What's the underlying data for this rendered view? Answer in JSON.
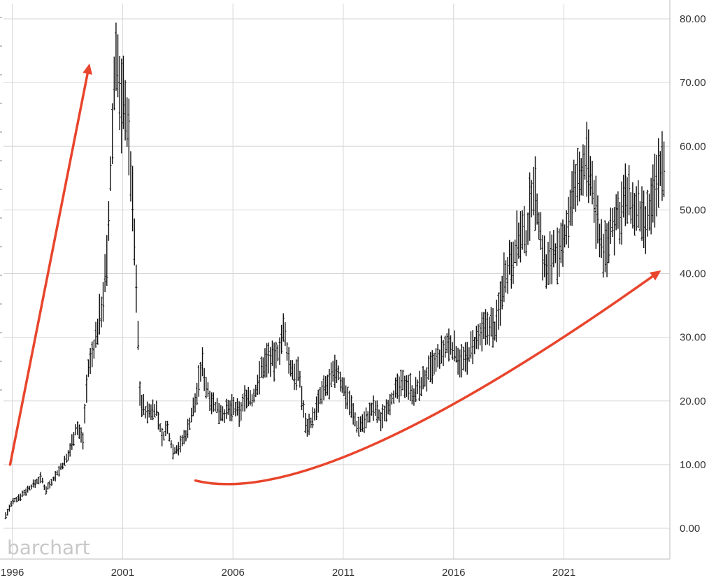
{
  "brand": {
    "logo_text": "barchart",
    "logo_color": "#c8c8c8"
  },
  "colors": {
    "bars": "#111111",
    "grid": "#d6d6d6",
    "annotation": "#e8452c",
    "text": "#333333"
  },
  "chart_data": {
    "type": "ohlc",
    "interval": "monthly",
    "title": "",
    "xlabel": "",
    "ylabel": "",
    "xlim": [
      1995.6,
      2025.8
    ],
    "ylim": [
      -5,
      82
    ],
    "y_axis_position": "right",
    "grid": true,
    "y_ticks": [
      "0.00",
      "10.00",
      "20.00",
      "30.00",
      "40.00",
      "50.00",
      "60.00",
      "70.00",
      "80.00"
    ],
    "y_tick_values": [
      0,
      10,
      20,
      30,
      40,
      50,
      60,
      70,
      80
    ],
    "x_ticks": [
      "1996",
      "2001",
      "2006",
      "2011",
      "2016",
      "2021"
    ],
    "x_tick_values": [
      1996,
      2001,
      2006,
      2011,
      2016,
      2021
    ],
    "price_path": [
      [
        1995.7,
        2.0
      ],
      [
        1996.0,
        4.0
      ],
      [
        1996.5,
        5.5
      ],
      [
        1997.0,
        7.0
      ],
      [
        1997.3,
        8.0
      ],
      [
        1997.5,
        6.0
      ],
      [
        1998.0,
        8.5
      ],
      [
        1998.5,
        11.0
      ],
      [
        1998.9,
        16.0
      ],
      [
        1999.2,
        14.0
      ],
      [
        1999.4,
        24.0
      ],
      [
        1999.8,
        30.0
      ],
      [
        2000.1,
        36.0
      ],
      [
        2000.3,
        42.0
      ],
      [
        2000.45,
        55.0
      ],
      [
        2000.6,
        68.0
      ],
      [
        2000.7,
        76.0
      ],
      [
        2000.9,
        66.0
      ],
      [
        2001.1,
        68.0
      ],
      [
        2001.3,
        60.0
      ],
      [
        2001.5,
        48.0
      ],
      [
        2001.7,
        30.0
      ],
      [
        2001.8,
        20.0
      ],
      [
        2002.1,
        18.0
      ],
      [
        2002.5,
        19.0
      ],
      [
        2002.8,
        14.0
      ],
      [
        2003.0,
        16.0
      ],
      [
        2003.3,
        12.0
      ],
      [
        2003.6,
        13.0
      ],
      [
        2003.9,
        15.0
      ],
      [
        2004.3,
        20.0
      ],
      [
        2004.6,
        26.0
      ],
      [
        2004.8,
        22.0
      ],
      [
        2005.2,
        19.0
      ],
      [
        2005.6,
        18.0
      ],
      [
        2006.0,
        19.0
      ],
      [
        2006.3,
        18.0
      ],
      [
        2006.6,
        21.0
      ],
      [
        2006.9,
        20.0
      ],
      [
        2007.3,
        25.0
      ],
      [
        2007.6,
        27.0
      ],
      [
        2007.9,
        26.0
      ],
      [
        2008.3,
        31.0
      ],
      [
        2008.6,
        25.0
      ],
      [
        2009.0,
        24.0
      ],
      [
        2009.3,
        16.0
      ],
      [
        2009.6,
        17.0
      ],
      [
        2010.0,
        21.0
      ],
      [
        2010.4,
        23.0
      ],
      [
        2010.7,
        25.0
      ],
      [
        2011.0,
        22.0
      ],
      [
        2011.3,
        20.0
      ],
      [
        2011.6,
        16.0
      ],
      [
        2012.0,
        17.0
      ],
      [
        2012.4,
        19.0
      ],
      [
        2012.7,
        17.0
      ],
      [
        2013.1,
        20.0
      ],
      [
        2013.5,
        22.0
      ],
      [
        2013.9,
        23.0
      ],
      [
        2014.2,
        21.0
      ],
      [
        2014.6,
        23.0
      ],
      [
        2015.0,
        25.0
      ],
      [
        2015.4,
        27.0
      ],
      [
        2015.8,
        29.0
      ],
      [
        2016.2,
        27.0
      ],
      [
        2016.5,
        26.0
      ],
      [
        2016.8,
        28.0
      ],
      [
        2017.2,
        30.0
      ],
      [
        2017.6,
        32.0
      ],
      [
        2017.9,
        31.0
      ],
      [
        2018.3,
        40.0
      ],
      [
        2018.7,
        43.0
      ],
      [
        2019.0,
        46.0
      ],
      [
        2019.3,
        45.0
      ],
      [
        2019.6,
        55.0
      ],
      [
        2019.9,
        47.0
      ],
      [
        2020.2,
        40.0
      ],
      [
        2020.5,
        44.0
      ],
      [
        2020.8,
        42.0
      ],
      [
        2021.1,
        47.0
      ],
      [
        2021.4,
        52.0
      ],
      [
        2021.7,
        55.0
      ],
      [
        2022.0,
        58.0
      ],
      [
        2022.3,
        53.0
      ],
      [
        2022.6,
        46.0
      ],
      [
        2022.9,
        43.0
      ],
      [
        2023.2,
        48.0
      ],
      [
        2023.5,
        49.0
      ],
      [
        2023.8,
        52.0
      ],
      [
        2024.1,
        50.0
      ],
      [
        2024.4,
        49.0
      ],
      [
        2024.7,
        47.0
      ],
      [
        2025.0,
        51.0
      ],
      [
        2025.3,
        56.0
      ],
      [
        2025.55,
        58.0
      ]
    ],
    "annotations": [
      {
        "type": "straight-arrow",
        "from": [
          1995.9,
          10.0
        ],
        "to": [
          1999.5,
          73.0
        ]
      },
      {
        "type": "curved-arrow",
        "from": [
          2004.3,
          7.5
        ],
        "via": [
          2010.0,
          7.0
        ],
        "to": [
          2025.4,
          40.5
        ]
      }
    ]
  }
}
